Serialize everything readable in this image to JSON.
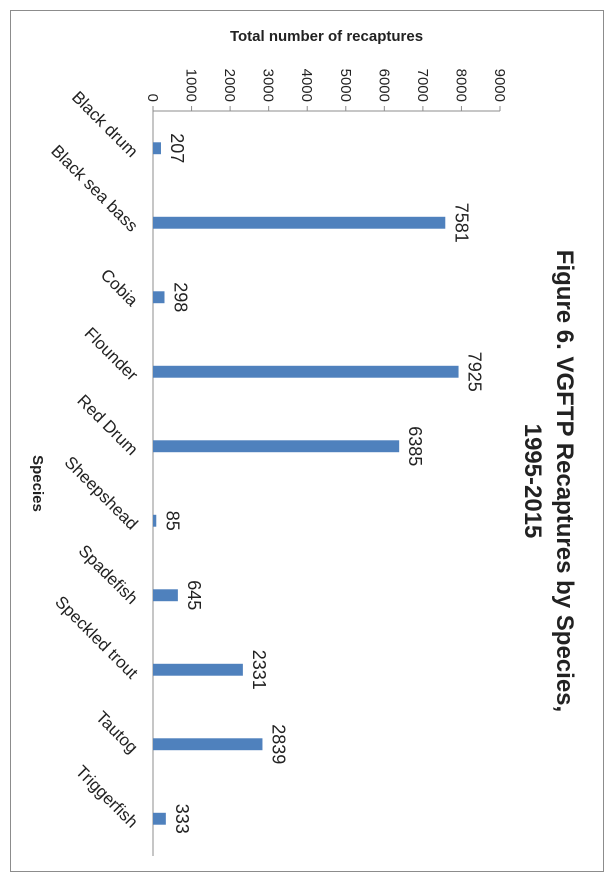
{
  "chart_data": {
    "type": "bar",
    "orientation": "rotated-90-clockwise",
    "title_line1": "Figure 6. VGFTP Recaptures by Species,",
    "title_line2": "1995-2015",
    "xlabel": "Species",
    "ylabel": "Total number of recaptures",
    "categories": [
      "Black drum",
      "Black sea bass",
      "Cobia",
      "Flounder",
      "Red Drum",
      "Sheepshead",
      "Spadefish",
      "Speckled trout",
      "Tautog",
      "Triggerfish"
    ],
    "values": [
      207,
      7581,
      298,
      7925,
      6385,
      85,
      645,
      2331,
      2839,
      333
    ],
    "data_labels": [
      "207",
      "7581",
      "298",
      "7925",
      "6385",
      "85",
      "645",
      "2331",
      "2839",
      "333"
    ],
    "ylim": [
      0,
      9000
    ],
    "yticks": [
      "0",
      "1000",
      "2000",
      "3000",
      "4000",
      "5000",
      "6000",
      "7000",
      "8000",
      "9000"
    ],
    "bar_color": "#4f81bd",
    "grid": false,
    "legend": "none"
  }
}
